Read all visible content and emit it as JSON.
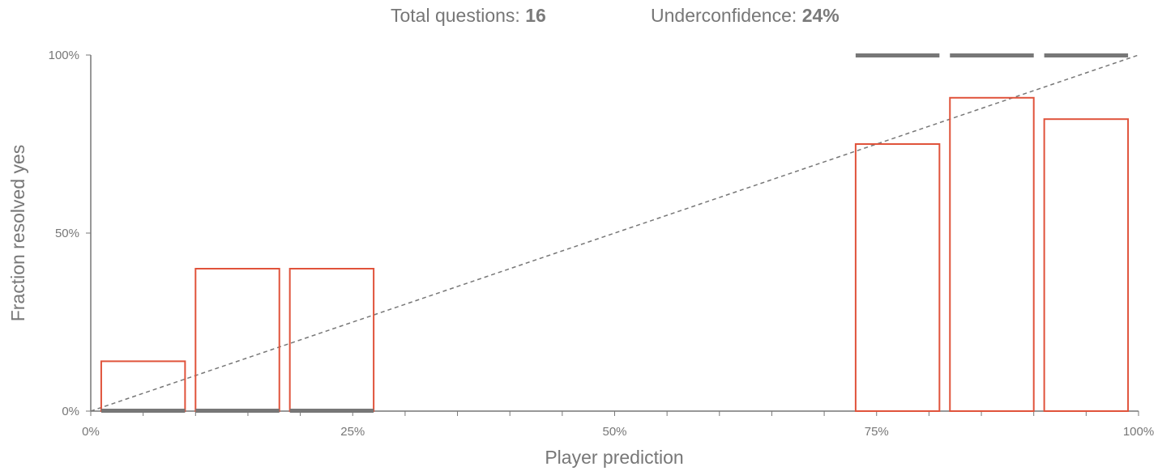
{
  "header": {
    "total_label": "Total questions:",
    "total_value": "16",
    "under_label": "Underconfidence:",
    "under_value": "24%"
  },
  "colors": {
    "bin_outline": "#e0533b",
    "count_bar": "#777777",
    "diagonal": "#777777",
    "axis": "#777777"
  },
  "chart_data": {
    "type": "bar",
    "xlabel": "Player prediction",
    "ylabel": "Fraction resolved yes",
    "xlim": [
      0,
      1
    ],
    "ylim": [
      0,
      1
    ],
    "x_ticks": [
      "0%",
      "25%",
      "50%",
      "75%",
      "100%"
    ],
    "y_ticks": [
      "0%",
      "50%",
      "100%"
    ],
    "grid": false,
    "reference_line": "diagonal, dashed",
    "bins": [
      {
        "x0": 0.01,
        "x1": 0.09,
        "fraction_yes": 0.14
      },
      {
        "x0": 0.1,
        "x1": 0.18,
        "fraction_yes": 0.4
      },
      {
        "x0": 0.19,
        "x1": 0.27,
        "fraction_yes": 0.4
      },
      {
        "x0": 0.73,
        "x1": 0.81,
        "fraction_yes": 0.75
      },
      {
        "x0": 0.82,
        "x1": 0.9,
        "fraction_yes": 0.88
      },
      {
        "x0": 0.91,
        "x1": 0.99,
        "fraction_yes": 0.82
      }
    ]
  }
}
